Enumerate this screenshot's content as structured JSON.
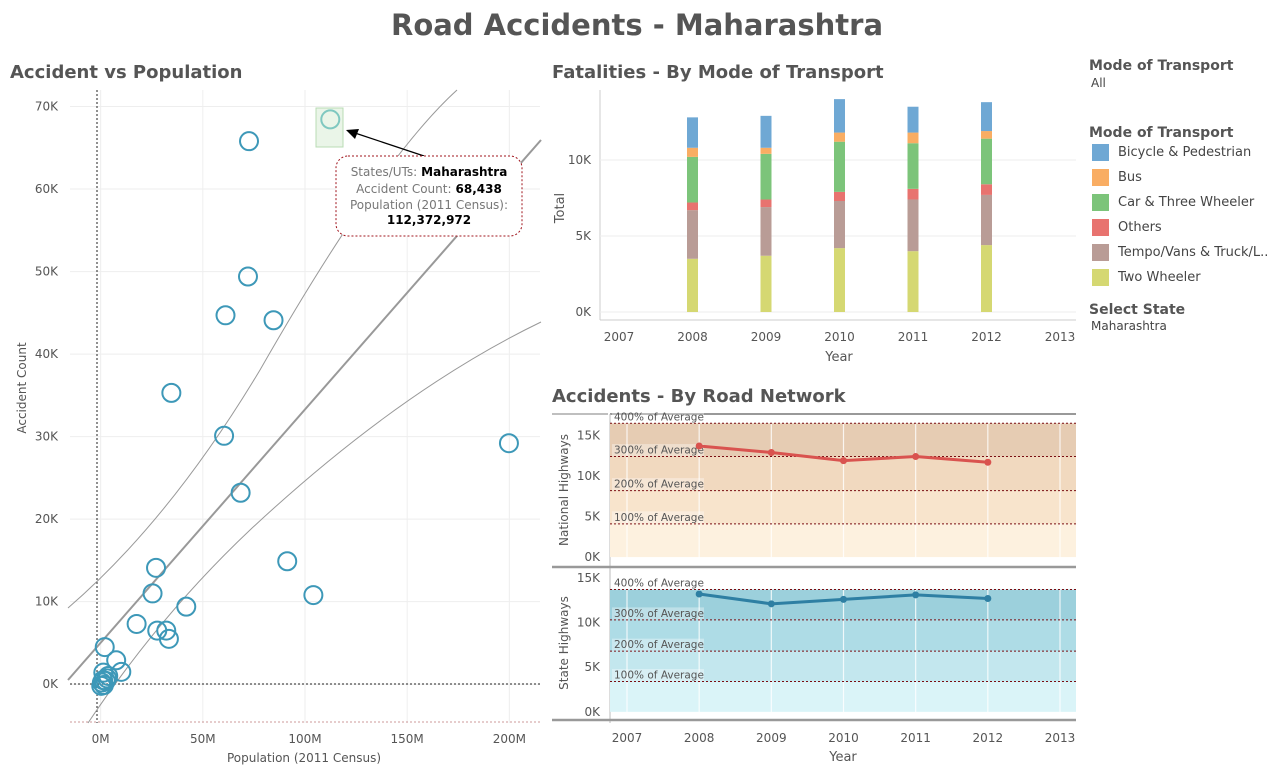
{
  "title": "Road Accidents - Maharashtra",
  "scatter": {
    "title": "Accident vs Population",
    "xlabel": "Population (2011 Census)",
    "ylabel": "Accident Count",
    "xticks": [
      "0M",
      "50M",
      "100M",
      "150M",
      "200M"
    ],
    "yticks": [
      "0K",
      "10K",
      "20K",
      "30K",
      "40K",
      "50K",
      "60K",
      "70K"
    ],
    "tooltip": {
      "state_label": "States/UTs:",
      "state_value": "Maharashtra",
      "count_label": "Accident Count:",
      "count_value": "68,438",
      "pop_label": "Population (2011 Census):",
      "pop_value": "112,372,972"
    }
  },
  "fatalities": {
    "title": "Fatalities - By Mode of Transport",
    "xlabel": "Year",
    "ylabel": "Total",
    "xticks": [
      "2007",
      "2008",
      "2009",
      "2010",
      "2011",
      "2012",
      "2013"
    ],
    "yticks": [
      "0K",
      "5K",
      "10K"
    ]
  },
  "network": {
    "title": "Accidents - By Road Network",
    "xlabel": "Year",
    "xticks": [
      "2007",
      "2008",
      "2009",
      "2010",
      "2011",
      "2012",
      "2013"
    ],
    "band_labels": [
      "400% of Average",
      "300% of Average",
      "200% of Average",
      "100% of Average"
    ],
    "national": {
      "label": "National Highways",
      "yticks": [
        "0K",
        "5K",
        "10K",
        "15K"
      ]
    },
    "state": {
      "label": "State Highways",
      "yticks": [
        "0K",
        "5K",
        "10K",
        "15K"
      ]
    }
  },
  "filters": {
    "mode_header": "Mode of Transport",
    "mode_value": "All",
    "legend_header": "Mode of Transport",
    "state_header": "Select State",
    "state_value": "Maharashtra"
  },
  "legend": [
    {
      "name": "Bicycle & Pedestrian",
      "color": "#6fa8d4"
    },
    {
      "name": "Bus",
      "color": "#f9ad63"
    },
    {
      "name": "Car & Three Wheeler",
      "color": "#7cc47a"
    },
    {
      "name": "Others",
      "color": "#e8736f"
    },
    {
      "name": "Tempo/Vans & Truck/L..",
      "color": "#b99c96"
    },
    {
      "name": "Two Wheeler",
      "color": "#d5d872"
    }
  ],
  "chart_data": [
    {
      "type": "scatter",
      "title": "Accident vs Population",
      "xlabel": "Population (2011 Census)",
      "ylabel": "Accident Count",
      "xlim": [
        -15000000,
        215000000
      ],
      "ylim": [
        -4700,
        72000
      ],
      "points": [
        {
          "x": 112372972,
          "y": 68438,
          "highlight": true
        },
        {
          "x": 72600000,
          "y": 65800
        },
        {
          "x": 72100000,
          "y": 49400
        },
        {
          "x": 61100000,
          "y": 44700
        },
        {
          "x": 84600000,
          "y": 44100
        },
        {
          "x": 34600000,
          "y": 35300
        },
        {
          "x": 60400000,
          "y": 30100
        },
        {
          "x": 199800000,
          "y": 29200
        },
        {
          "x": 68500000,
          "y": 23200
        },
        {
          "x": 91300000,
          "y": 14900
        },
        {
          "x": 27100000,
          "y": 14100
        },
        {
          "x": 104100000,
          "y": 10800
        },
        {
          "x": 25400000,
          "y": 11000
        },
        {
          "x": 41900000,
          "y": 9400
        },
        {
          "x": 17600000,
          "y": 7300
        },
        {
          "x": 27700000,
          "y": 6500
        },
        {
          "x": 32100000,
          "y": 6500
        },
        {
          "x": 33400000,
          "y": 5500
        },
        {
          "x": 2000000,
          "y": 4500
        },
        {
          "x": 7600000,
          "y": 2900
        },
        {
          "x": 10100000,
          "y": 1500
        },
        {
          "x": 1300000,
          "y": 1400
        },
        {
          "x": 3700000,
          "y": 1000
        },
        {
          "x": 1200000,
          "y": 500
        },
        {
          "x": 600000,
          "y": 200
        },
        {
          "x": 300000,
          "y": -200
        },
        {
          "x": 2500000,
          "y": 400
        },
        {
          "x": 1600000,
          "y": -100
        },
        {
          "x": 3200000,
          "y": 700
        }
      ]
    },
    {
      "type": "bar",
      "stacked": true,
      "title": "Fatalities - By Mode of Transport",
      "xlabel": "Year",
      "ylabel": "Total",
      "categories": [
        "2008",
        "2009",
        "2010",
        "2011",
        "2012"
      ],
      "xlim": [
        2007,
        2013
      ],
      "ylim": [
        0,
        14600
      ],
      "series": [
        {
          "name": "Two Wheeler",
          "color": "#d5d872",
          "values": [
            3500,
            3700,
            4200,
            4000,
            4400
          ]
        },
        {
          "name": "Tempo/Vans & Truck/L..",
          "color": "#b99c96",
          "values": [
            3200,
            3200,
            3100,
            3400,
            3300
          ]
        },
        {
          "name": "Others",
          "color": "#e8736f",
          "values": [
            500,
            500,
            600,
            700,
            700
          ]
        },
        {
          "name": "Car & Three Wheeler",
          "color": "#7cc47a",
          "values": [
            3000,
            3000,
            3300,
            3000,
            3000
          ]
        },
        {
          "name": "Bus",
          "color": "#f9ad63",
          "values": [
            600,
            400,
            600,
            700,
            500
          ]
        },
        {
          "name": "Bicycle & Pedestrian",
          "color": "#6fa8d4",
          "values": [
            2000,
            2100,
            2200,
            1700,
            1900
          ]
        }
      ]
    },
    {
      "type": "line",
      "title": "Accidents - By Road Network",
      "xlabel": "Year",
      "x": [
        2008,
        2009,
        2010,
        2011,
        2012
      ],
      "xlim": [
        2007,
        2013
      ],
      "series": [
        {
          "name": "National Highways",
          "color": "#d9534f",
          "values": [
            13700,
            12900,
            11900,
            12400,
            11700
          ],
          "ylim": [
            -1100,
            17400
          ],
          "reference_bands": [
            {
              "label": "100% of Average",
              "value": 4100
            },
            {
              "label": "200% of Average",
              "value": 8200
            },
            {
              "label": "300% of Average",
              "value": 12400
            },
            {
              "label": "400% of Average",
              "value": 16500
            }
          ]
        },
        {
          "name": "State Highways",
          "color": "#2e7fa3",
          "values": [
            13200,
            12100,
            12600,
            13100,
            12700
          ],
          "ylim": [
            -800,
            16000
          ],
          "reference_bands": [
            {
              "label": "100% of Average",
              "value": 3400
            },
            {
              "label": "200% of Average",
              "value": 6800
            },
            {
              "label": "300% of Average",
              "value": 10300
            },
            {
              "label": "400% of Average",
              "value": 13700
            }
          ]
        }
      ]
    }
  ]
}
